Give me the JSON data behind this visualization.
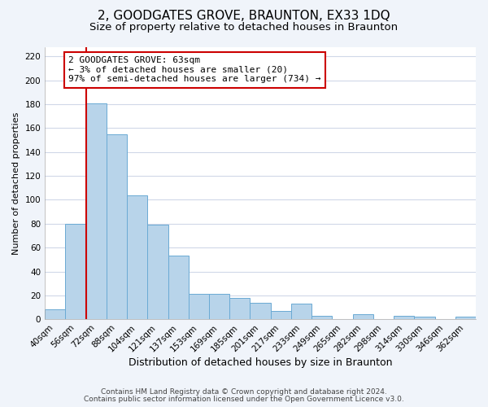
{
  "title": "2, GOODGATES GROVE, BRAUNTON, EX33 1DQ",
  "subtitle": "Size of property relative to detached houses in Braunton",
  "xlabel": "Distribution of detached houses by size in Braunton",
  "ylabel": "Number of detached properties",
  "bar_labels": [
    "40sqm",
    "56sqm",
    "72sqm",
    "88sqm",
    "104sqm",
    "121sqm",
    "137sqm",
    "153sqm",
    "169sqm",
    "185sqm",
    "201sqm",
    "217sqm",
    "233sqm",
    "249sqm",
    "265sqm",
    "282sqm",
    "298sqm",
    "314sqm",
    "330sqm",
    "346sqm",
    "362sqm"
  ],
  "bar_values": [
    8,
    80,
    181,
    155,
    104,
    79,
    53,
    21,
    21,
    18,
    14,
    7,
    13,
    3,
    0,
    4,
    0,
    3,
    2,
    0,
    2
  ],
  "bar_color": "#b8d4ea",
  "bar_edge_color": "#6aaad4",
  "vline_x": 1.5,
  "vline_color": "#cc0000",
  "annotation_text": "2 GOODGATES GROVE: 63sqm\n← 3% of detached houses are smaller (20)\n97% of semi-detached houses are larger (734) →",
  "annotation_box_color": "#ffffff",
  "annotation_box_edge": "#cc0000",
  "ylim": [
    0,
    228
  ],
  "yticks": [
    0,
    20,
    40,
    60,
    80,
    100,
    120,
    140,
    160,
    180,
    200,
    220
  ],
  "footer_line1": "Contains HM Land Registry data © Crown copyright and database right 2024.",
  "footer_line2": "Contains public sector information licensed under the Open Government Licence v3.0.",
  "plot_bg_color": "#ffffff",
  "fig_bg_color": "#f0f4fa",
  "grid_color": "#d0d8e8",
  "title_fontsize": 11,
  "subtitle_fontsize": 9.5,
  "xlabel_fontsize": 9,
  "ylabel_fontsize": 8,
  "tick_fontsize": 7.5,
  "annotation_fontsize": 8,
  "footer_fontsize": 6.5
}
